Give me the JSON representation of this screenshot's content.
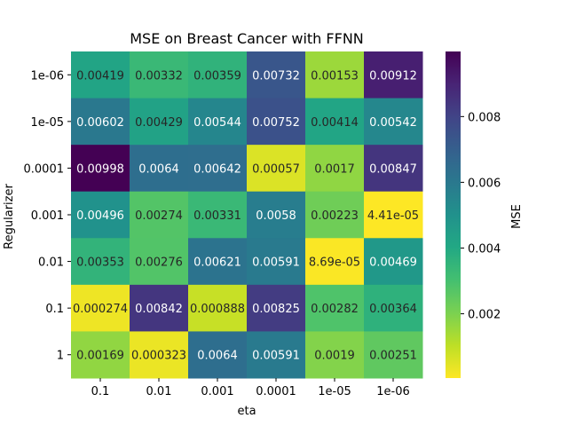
{
  "chart_data": {
    "type": "heatmap",
    "title": "MSE on Breast Cancer with FFNN",
    "xlabel": "eta",
    "ylabel": "Regularizer",
    "colorbar_label": "MSE",
    "colormap": "viridis_r",
    "x_categories": [
      "0.1",
      "0.01",
      "0.001",
      "0.0001",
      "1e-05",
      "1e-06"
    ],
    "y_categories": [
      "1e-06",
      "1e-05",
      "0.0001",
      "0.001",
      "0.01",
      "0.1",
      "1"
    ],
    "values": [
      [
        0.00419,
        0.00332,
        0.00359,
        0.00732,
        0.00153,
        0.00912
      ],
      [
        0.00602,
        0.00429,
        0.00544,
        0.00752,
        0.00414,
        0.00542
      ],
      [
        0.00998,
        0.0064,
        0.00642,
        0.00057,
        0.0017,
        0.00847
      ],
      [
        0.00496,
        0.00274,
        0.00331,
        0.0058,
        0.00223,
        4.41e-05
      ],
      [
        0.00353,
        0.00276,
        0.00621,
        0.00591,
        8.69e-05,
        0.00469
      ],
      [
        0.000274,
        0.00842,
        0.000888,
        0.00825,
        0.00282,
        0.00364
      ],
      [
        0.00169,
        0.000323,
        0.0064,
        0.00591,
        0.0019,
        0.00251
      ]
    ],
    "cell_labels": [
      [
        "0.00419",
        "0.00332",
        "0.00359",
        "0.00732",
        "0.00153",
        "0.00912"
      ],
      [
        "0.00602",
        "0.00429",
        "0.00544",
        "0.00752",
        "0.00414",
        "0.00542"
      ],
      [
        "0.00998",
        "0.0064",
        "0.00642",
        "0.00057",
        "0.0017",
        "0.00847"
      ],
      [
        "0.00496",
        "0.00274",
        "0.00331",
        "0.0058",
        "0.00223",
        "4.41e-05"
      ],
      [
        "0.00353",
        "0.00276",
        "0.00621",
        "0.00591",
        "8.69e-05",
        "0.00469"
      ],
      [
        "0.000274",
        "0.00842",
        "0.000888",
        "0.00825",
        "0.00282",
        "0.00364"
      ],
      [
        "0.00169",
        "0.000323",
        "0.0064",
        "0.00591",
        "0.0019",
        "0.00251"
      ]
    ],
    "vmin": 4.41e-05,
    "vmax": 0.00998,
    "colorbar_ticks": [
      0.002,
      0.004,
      0.006,
      0.008
    ],
    "colorbar_tick_labels": [
      "0.002",
      "0.004",
      "0.006",
      "0.008"
    ]
  }
}
